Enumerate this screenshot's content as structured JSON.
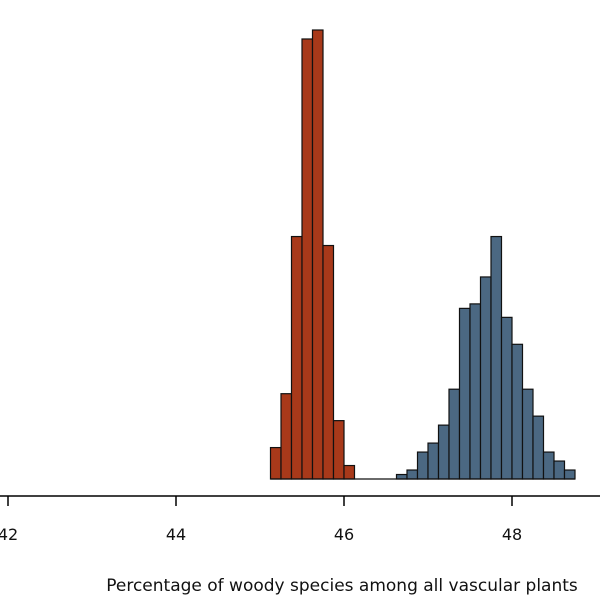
{
  "chart_data": {
    "type": "bar",
    "title": "",
    "xlabel": "Percentage of woody species among all vascular plants",
    "ylabel": "",
    "xlim": [
      42,
      49.0
    ],
    "ylim": [
      0,
      100
    ],
    "bin_width": 0.125,
    "x_ticks": [
      "42",
      "44",
      "46",
      "48"
    ],
    "grid": false,
    "legend": "none",
    "series": [
      {
        "color": "#A8391A",
        "bins": [
          {
            "x": 45.125,
            "value": 7
          },
          {
            "x": 45.25,
            "value": 19
          },
          {
            "x": 45.375,
            "value": 54
          },
          {
            "x": 45.5,
            "value": 98
          },
          {
            "x": 45.625,
            "value": 100
          },
          {
            "x": 45.75,
            "value": 52
          },
          {
            "x": 45.875,
            "value": 13
          },
          {
            "x": 46.0,
            "value": 3
          }
        ]
      },
      {
        "color": "#4B6882",
        "bins": [
          {
            "x": 46.625,
            "value": 1
          },
          {
            "x": 46.75,
            "value": 2
          },
          {
            "x": 46.875,
            "value": 6
          },
          {
            "x": 47.0,
            "value": 8
          },
          {
            "x": 47.125,
            "value": 12
          },
          {
            "x": 47.25,
            "value": 20
          },
          {
            "x": 47.375,
            "value": 38
          },
          {
            "x": 47.5,
            "value": 39
          },
          {
            "x": 47.625,
            "value": 45
          },
          {
            "x": 47.75,
            "value": 54
          },
          {
            "x": 47.875,
            "value": 36
          },
          {
            "x": 48.0,
            "value": 30
          },
          {
            "x": 48.125,
            "value": 20
          },
          {
            "x": 48.25,
            "value": 14
          },
          {
            "x": 48.375,
            "value": 6
          },
          {
            "x": 48.5,
            "value": 4
          },
          {
            "x": 48.625,
            "value": 2
          }
        ]
      }
    ]
  }
}
